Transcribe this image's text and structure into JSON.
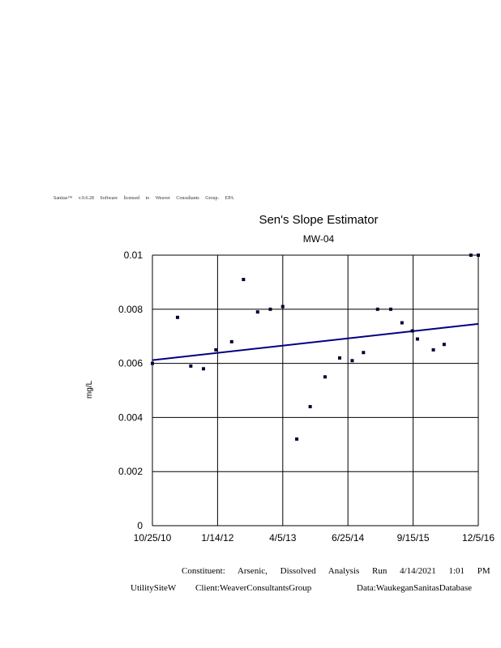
{
  "banner": "Sanitas™ v.9.6.28 Software licensed to Weaver Consultants Group. EPA",
  "chart_data": {
    "type": "scatter",
    "title": "Sen's Slope Estimator",
    "subtitle": "MW-04",
    "ylabel": "mg/L",
    "xlabel": "",
    "x_ticks": [
      "10/25/10",
      "1/14/12",
      "4/5/13",
      "6/25/14",
      "9/15/15",
      "12/5/16"
    ],
    "y_ticks": [
      "0",
      "0.002",
      "0.004",
      "0.006",
      "0.008",
      "0.01"
    ],
    "ylim": [
      0,
      0.01
    ],
    "xlim": [
      "2010-10-25",
      "2016-12-05"
    ],
    "grid": true,
    "series": [
      {
        "marker": "dot",
        "color": "#000033",
        "points": [
          {
            "x": "2010-10-25",
            "y": 0.006
          },
          {
            "x": "2011-04-15",
            "y": 0.0077
          },
          {
            "x": "2011-07-15",
            "y": 0.0059
          },
          {
            "x": "2011-10-10",
            "y": 0.0058
          },
          {
            "x": "2012-01-03",
            "y": 0.0065
          },
          {
            "x": "2012-04-20",
            "y": 0.0068
          },
          {
            "x": "2012-07-10",
            "y": 0.0091
          },
          {
            "x": "2012-10-15",
            "y": 0.0079
          },
          {
            "x": "2013-01-10",
            "y": 0.008
          },
          {
            "x": "2013-04-05",
            "y": 0.0081
          },
          {
            "x": "2013-07-10",
            "y": 0.0032
          },
          {
            "x": "2013-10-10",
            "y": 0.0044
          },
          {
            "x": "2014-01-20",
            "y": 0.0055
          },
          {
            "x": "2014-04-30",
            "y": 0.0062
          },
          {
            "x": "2014-07-25",
            "y": 0.0061
          },
          {
            "x": "2014-10-10",
            "y": 0.0064
          },
          {
            "x": "2015-01-15",
            "y": 0.008
          },
          {
            "x": "2015-04-15",
            "y": 0.008
          },
          {
            "x": "2015-07-01",
            "y": 0.0075
          },
          {
            "x": "2015-09-10",
            "y": 0.0072
          },
          {
            "x": "2015-10-15",
            "y": 0.0069
          },
          {
            "x": "2016-02-01",
            "y": 0.0065
          },
          {
            "x": "2016-04-15",
            "y": 0.0067
          },
          {
            "x": "2016-10-15",
            "y": 0.01
          },
          {
            "x": "2016-12-05",
            "y": 0.01
          }
        ]
      }
    ],
    "trend_line": {
      "color": "#000080",
      "start": {
        "x": "2010-10-25",
        "y": 0.00612
      },
      "end": {
        "x": "2016-12-05",
        "y": 0.00746
      }
    }
  },
  "footer": {
    "line1": "Constituent: Arsenic, Dissolved Analysis Run 4/14/2021 1:01 PM",
    "site": "UtilitySiteW",
    "client": "Client:WeaverConsultantsGroup",
    "data": "Data:WaukeganSanitasDatabase"
  }
}
